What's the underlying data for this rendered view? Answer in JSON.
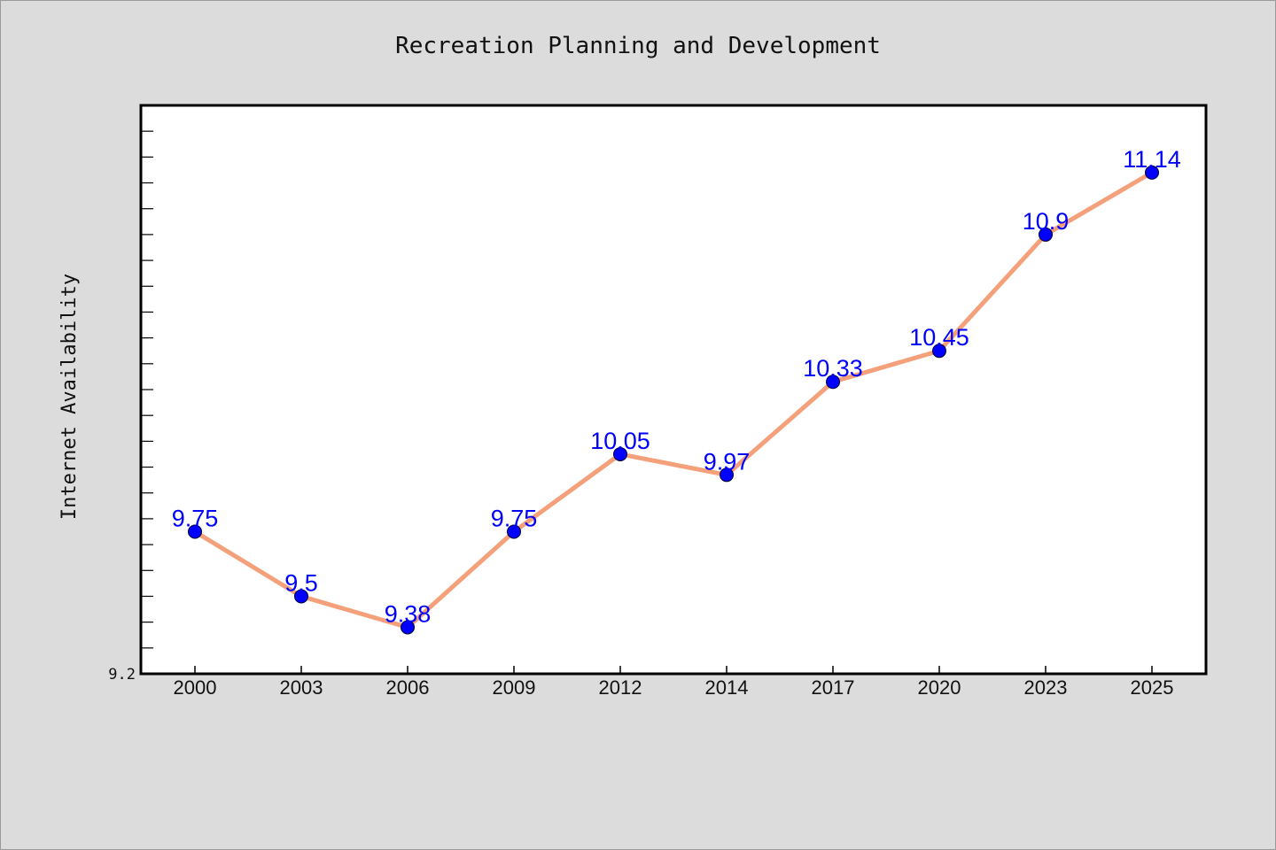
{
  "chart_data": {
    "type": "line",
    "title": "Recreation Planning and Development",
    "xlabel": "",
    "ylabel": "Internet Availability",
    "categories": [
      "2000",
      "2003",
      "2006",
      "2009",
      "2012",
      "2014",
      "2017",
      "2020",
      "2023",
      "2025"
    ],
    "series": [
      {
        "values": [
          9.75,
          9.5,
          9.38,
          9.75,
          10.05,
          9.97,
          10.33,
          10.45,
          10.9,
          11.14
        ],
        "labels": [
          "9.75",
          "9.5",
          "9.38",
          "9.75",
          "10.05",
          "9.97",
          "10.33",
          "10.45",
          "10.9",
          "11.14"
        ]
      }
    ],
    "ylim": [
      9.2,
      11.4
    ],
    "ytick_labels": [
      "9.2"
    ],
    "grid": false,
    "line_color": "#f4a07a",
    "marker_color": "#0000ff",
    "label_color": "#0000ff",
    "plot_background": "#ffffff",
    "figure_background": "#dcdcdc"
  }
}
